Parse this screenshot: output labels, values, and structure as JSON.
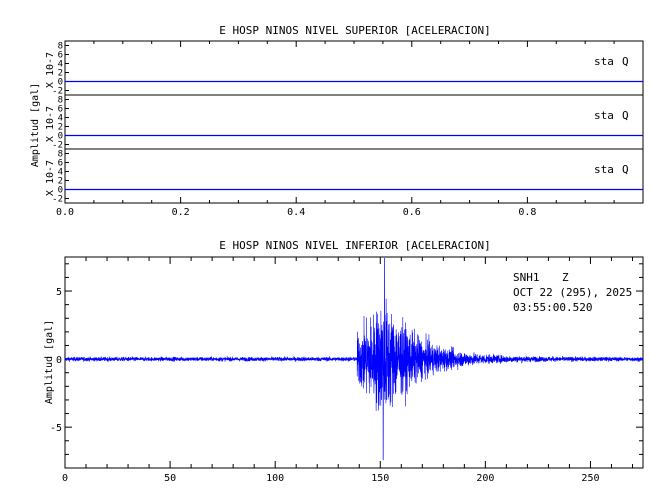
{
  "chart_data": [
    {
      "type": "line",
      "title": "E HOSP NINOS NIVEL SUPERIOR [ACELERACION]",
      "ylabel": "Amplitud [gal]",
      "xlim": [
        0,
        1.0
      ],
      "x_ticks": [
        "0.0",
        "0.2",
        "0.4",
        "0.6",
        "0.8"
      ],
      "line_color": "#0000ff",
      "panels": [
        {
          "scale_label": "X 10-7",
          "station_label": "sta",
          "component_label": "Q",
          "y_ticks": [
            "8",
            "6",
            "4",
            "2",
            "0",
            "-2"
          ],
          "ylim": [
            -3,
            9
          ],
          "values": [
            0,
            0
          ]
        },
        {
          "scale_label": "X 10-7",
          "station_label": "sta",
          "component_label": "Q",
          "y_ticks": [
            "8",
            "6",
            "4",
            "2",
            "0",
            "-2"
          ],
          "ylim": [
            -3,
            9
          ],
          "values": [
            0,
            0
          ]
        },
        {
          "scale_label": "X 10-7",
          "station_label": "sta",
          "component_label": "Q",
          "y_ticks": [
            "8",
            "6",
            "4",
            "2",
            "0",
            "-2"
          ],
          "ylim": [
            -3,
            9
          ],
          "values": [
            0,
            0
          ]
        }
      ]
    },
    {
      "type": "line",
      "title": "E HOSP NINOS NIVEL INFERIOR [ACELERACION]",
      "ylabel": "Amplitud [gal]",
      "xlim": [
        0,
        275
      ],
      "ylim": [
        -8,
        7.5
      ],
      "x_ticks": [
        0,
        50,
        100,
        150,
        200,
        250
      ],
      "y_ticks": [
        5,
        0,
        -5
      ],
      "annotation": {
        "station": "SNH1",
        "component": "Z",
        "date": "OCT 22 (295), 2025",
        "time": "03:55:00.520"
      },
      "line_color": "#0000ff",
      "noise_floor": 0.15,
      "event_onset_x": 139,
      "peak_positive": 7.4,
      "peak_negative": -7.4,
      "peak_x": 152
    }
  ]
}
